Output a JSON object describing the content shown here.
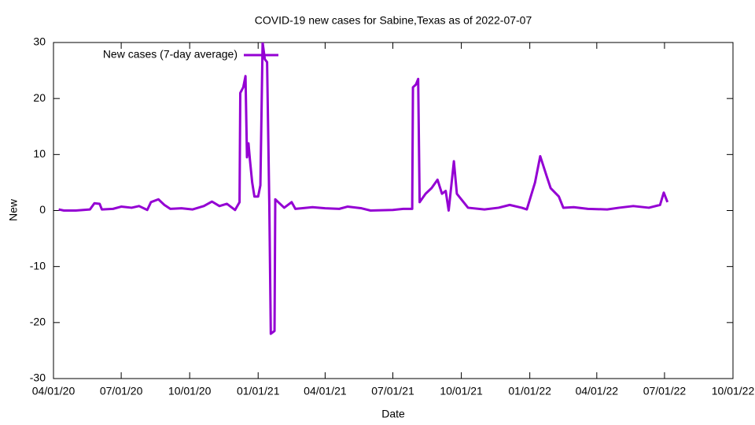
{
  "chart_data": {
    "type": "line",
    "title": "COVID-19 new cases for Sabine,Texas as of 2022-07-07",
    "x_label": "Date",
    "y_label": "New",
    "x": [
      "2020-04-08",
      "2020-04-15",
      "2020-05-01",
      "2020-05-20",
      "2020-05-26",
      "2020-06-02",
      "2020-06-05",
      "2020-06-20",
      "2020-07-01",
      "2020-07-15",
      "2020-07-25",
      "2020-08-05",
      "2020-08-10",
      "2020-08-20",
      "2020-08-28",
      "2020-09-05",
      "2020-09-20",
      "2020-10-05",
      "2020-10-20",
      "2020-10-31",
      "2020-11-10",
      "2020-11-20",
      "2020-12-01",
      "2020-12-07",
      "2020-12-08",
      "2020-12-12",
      "2020-12-15",
      "2020-12-17",
      "2020-12-19",
      "2020-12-21",
      "2020-12-24",
      "2020-12-27",
      "2021-01-01",
      "2021-01-04",
      "2021-01-07",
      "2021-01-10",
      "2021-01-13",
      "2021-01-16",
      "2021-01-18",
      "2021-01-23",
      "2021-01-24",
      "2021-01-28",
      "2021-02-05",
      "2021-02-15",
      "2021-02-20",
      "2021-03-15",
      "2021-04-01",
      "2021-04-20",
      "2021-05-01",
      "2021-05-20",
      "2021-06-01",
      "2021-07-01",
      "2021-07-15",
      "2021-07-27",
      "2021-07-28",
      "2021-08-01",
      "2021-08-04",
      "2021-08-06",
      "2021-08-14",
      "2021-08-22",
      "2021-08-30",
      "2021-09-05",
      "2021-09-10",
      "2021-09-14",
      "2021-09-21",
      "2021-09-25",
      "2021-10-01",
      "2021-10-10",
      "2021-11-01",
      "2021-11-20",
      "2021-12-05",
      "2021-12-21",
      "2021-12-28",
      "2022-01-08",
      "2022-01-15",
      "2022-01-24",
      "2022-01-29",
      "2022-02-09",
      "2022-02-15",
      "2022-03-01",
      "2022-03-20",
      "2022-04-15",
      "2022-05-01",
      "2022-05-20",
      "2022-06-10",
      "2022-06-25",
      "2022-06-30",
      "2022-07-05"
    ],
    "series": [
      {
        "name": "New cases (7-day average)",
        "color": "#9400d3",
        "values": [
          0.2,
          0,
          0,
          0.2,
          1.3,
          1.2,
          0.2,
          0.3,
          0.7,
          0.5,
          0.8,
          0.1,
          1.5,
          2,
          1,
          0.3,
          0.4,
          0.2,
          0.8,
          1.6,
          0.8,
          1.2,
          0.1,
          1.5,
          21,
          22,
          24,
          9.5,
          12,
          9,
          5,
          2.5,
          2.5,
          4.5,
          30,
          27,
          26.5,
          1,
          -22,
          -21.5,
          2,
          1.5,
          0.5,
          1.5,
          0.3,
          0.6,
          0.4,
          0.3,
          0.7,
          0.4,
          0,
          0.1,
          0.3,
          0.3,
          22,
          22.5,
          23.5,
          1.5,
          3,
          4,
          5.5,
          3,
          3.5,
          0,
          8.8,
          3,
          2,
          0.5,
          0.2,
          0.5,
          1,
          0.5,
          0.2,
          5,
          9.7,
          6,
          4,
          2.5,
          0.5,
          0.6,
          0.3,
          0.2,
          0.5,
          0.8,
          0.5,
          1,
          3.2,
          1.5
        ]
      }
    ],
    "xlim": [
      "2020-04-01",
      "2022-10-01"
    ],
    "xticks": [
      {
        "value": "2020-04-01",
        "label": "04/01/20"
      },
      {
        "value": "2020-07-01",
        "label": "07/01/20"
      },
      {
        "value": "2020-10-01",
        "label": "10/01/20"
      },
      {
        "value": "2021-01-01",
        "label": "01/01/21"
      },
      {
        "value": "2021-04-01",
        "label": "04/01/21"
      },
      {
        "value": "2021-07-01",
        "label": "07/01/21"
      },
      {
        "value": "2021-10-01",
        "label": "10/01/21"
      },
      {
        "value": "2022-01-01",
        "label": "01/01/22"
      },
      {
        "value": "2022-04-01",
        "label": "04/01/22"
      },
      {
        "value": "2022-07-01",
        "label": "07/01/22"
      },
      {
        "value": "2022-10-01",
        "label": "10/01/22"
      }
    ],
    "ylim": [
      -30,
      30
    ],
    "yticks": [
      -30,
      -20,
      -10,
      0,
      10,
      20,
      30
    ],
    "grid": false,
    "legend": "top-left"
  }
}
